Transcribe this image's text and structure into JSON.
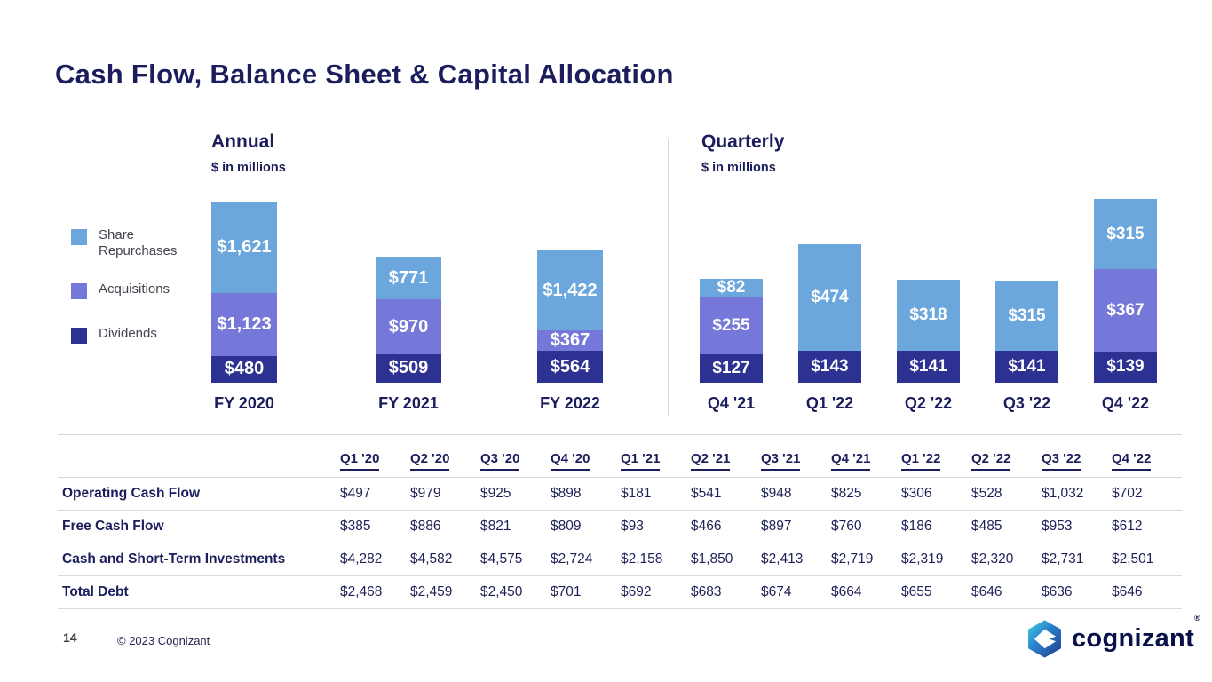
{
  "slide": {
    "title": "Cash Flow, Balance Sheet & Capital Allocation",
    "page_number": "14",
    "copyright": "© 2023 Cognizant"
  },
  "colors": {
    "text_navy": "#1B1D5C",
    "share_repurchases_blue": "#6BA6DC",
    "acquisitions_purple": "#7678D9",
    "dividends_navy": "#2D3191",
    "grid_line_gray": "#D9D9D9"
  },
  "legend": {
    "items": [
      {
        "label": "Share Repurchases",
        "color": "#6BA6DC"
      },
      {
        "label": "Acquisitions",
        "color": "#7678D9"
      },
      {
        "label": "Dividends",
        "color": "#2D3191"
      }
    ]
  },
  "chart_data": [
    {
      "type": "bar",
      "stacked": true,
      "title": "Annual",
      "subtitle": "$ in millions",
      "unit": "USD millions",
      "categories": [
        "FY 2020",
        "FY 2021",
        "FY 2022"
      ],
      "series": [
        {
          "name": "Share Repurchases",
          "color": "#6BA6DC",
          "values": [
            1621,
            771,
            1422
          ]
        },
        {
          "name": "Acquisitions",
          "color": "#7678D9",
          "values": [
            1123,
            970,
            367
          ]
        },
        {
          "name": "Dividends",
          "color": "#2D3191",
          "values": [
            480,
            509,
            564
          ]
        }
      ],
      "data_label_format": "$#,###",
      "legend_position": "left",
      "grid": false
    },
    {
      "type": "bar",
      "stacked": true,
      "title": "Quarterly",
      "subtitle": "$ in millions",
      "unit": "USD millions",
      "categories": [
        "Q4 '21",
        "Q1 '22",
        "Q2 '22",
        "Q3 '22",
        "Q4 '22"
      ],
      "series": [
        {
          "name": "Share Repurchases",
          "color": "#6BA6DC",
          "values": [
            82,
            474,
            318,
            315,
            315
          ]
        },
        {
          "name": "Acquisitions",
          "color": "#7678D9",
          "values": [
            255,
            0,
            0,
            0,
            367
          ]
        },
        {
          "name": "Dividends",
          "color": "#2D3191",
          "values": [
            127,
            143,
            141,
            141,
            139
          ]
        }
      ],
      "data_label_format": "$#,###",
      "grid": false
    }
  ],
  "table": {
    "columns": [
      "Q1 '20",
      "Q2 '20",
      "Q3 '20",
      "Q4 '20",
      "Q1 '21",
      "Q2 '21",
      "Q3 '21",
      "Q4 '21",
      "Q1 '22",
      "Q2 '22",
      "Q3 '22",
      "Q4 '22"
    ],
    "rows": [
      {
        "label": "Operating Cash Flow",
        "values": [
          "$497",
          "$979",
          "$925",
          "$898",
          "$181",
          "$541",
          "$948",
          "$825",
          "$306",
          "$528",
          "$1,032",
          "$702"
        ]
      },
      {
        "label": "Free Cash Flow",
        "values": [
          "$385",
          "$886",
          "$821",
          "$809",
          "$93",
          "$466",
          "$897",
          "$760",
          "$186",
          "$485",
          "$953",
          "$612"
        ]
      },
      {
        "label": "Cash and Short-Term Investments",
        "values": [
          "$4,282",
          "$4,582",
          "$4,575",
          "$2,724",
          "$2,158",
          "$1,850",
          "$2,413",
          "$2,719",
          "$2,319",
          "$2,320",
          "$2,731",
          "$2,501"
        ]
      },
      {
        "label": "Total Debt",
        "values": [
          "$2,468",
          "$2,459",
          "$2,450",
          "$701",
          "$692",
          "$683",
          "$674",
          "$664",
          "$655",
          "$646",
          "$636",
          "$646"
        ]
      }
    ]
  },
  "logo": {
    "text": "cognizant",
    "registered": "®"
  }
}
